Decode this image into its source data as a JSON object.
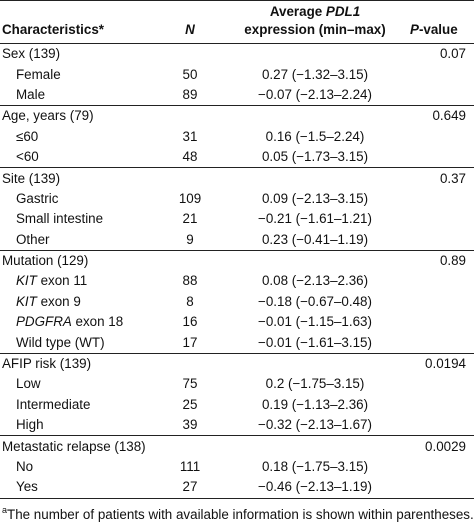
{
  "header": {
    "characteristics": "Characteristics*",
    "n": "N",
    "avg_line1_prefix": "Average ",
    "avg_line1_gene": "PDL1",
    "avg_line2": "expression (min–max)",
    "p_italic": "P",
    "p_rest": "-value"
  },
  "rows": [
    {
      "label": "Sex (139)",
      "n": "",
      "avg": "",
      "p": "0.07",
      "indent": false,
      "italic": false,
      "rest": ""
    },
    {
      "label": "Female",
      "n": "50",
      "avg": "0.27 (−1.32–3.15)",
      "p": "",
      "indent": true,
      "italic": false,
      "rest": ""
    },
    {
      "label": "Male",
      "n": "89",
      "avg": "−0.07 (−2.13–2.24)",
      "p": "",
      "indent": true,
      "italic": false,
      "rest": ""
    },
    {
      "label": "Age, years (79)",
      "n": "",
      "avg": "",
      "p": "0.649",
      "indent": false,
      "italic": false,
      "rest": ""
    },
    {
      "label": "≤60",
      "n": "31",
      "avg": "0.16 (−1.5–2.24)",
      "p": "",
      "indent": true,
      "italic": false,
      "rest": ""
    },
    {
      "label": "<60",
      "n": "48",
      "avg": "0.05 (−1.73–3.15)",
      "p": "",
      "indent": true,
      "italic": false,
      "rest": ""
    },
    {
      "label": "Site (139)",
      "n": "",
      "avg": "",
      "p": "0.37",
      "indent": false,
      "italic": false,
      "rest": ""
    },
    {
      "label": "Gastric",
      "n": "109",
      "avg": "0.09 (−2.13–3.15)",
      "p": "",
      "indent": true,
      "italic": false,
      "rest": ""
    },
    {
      "label": "Small intestine",
      "n": "21",
      "avg": "−0.21 (−1.61–1.21)",
      "p": "",
      "indent": true,
      "italic": false,
      "rest": ""
    },
    {
      "label": "Other",
      "n": "9",
      "avg": "0.23 (−0.41–1.19)",
      "p": "",
      "indent": true,
      "italic": false,
      "rest": ""
    },
    {
      "label": "Mutation (129)",
      "n": "",
      "avg": "",
      "p": "0.89",
      "indent": false,
      "italic": false,
      "rest": ""
    },
    {
      "label": "KIT",
      "n": "88",
      "avg": "0.08 (−2.13–2.36)",
      "p": "",
      "indent": true,
      "italic": true,
      "rest": " exon 11"
    },
    {
      "label": "KIT",
      "n": "8",
      "avg": "−0.18 (−0.67–0.48)",
      "p": "",
      "indent": true,
      "italic": true,
      "rest": " exon 9"
    },
    {
      "label": "PDGFRA",
      "n": "16",
      "avg": "−0.01 (−1.15–1.63)",
      "p": "",
      "indent": true,
      "italic": true,
      "rest": " exon 18"
    },
    {
      "label": "Wild type (WT)",
      "n": "17",
      "avg": "−0.01 (−1.61–3.15)",
      "p": "",
      "indent": true,
      "italic": false,
      "rest": ""
    },
    {
      "label": "AFIP risk (139)",
      "n": "",
      "avg": "",
      "p": "0.0194",
      "indent": false,
      "italic": false,
      "rest": ""
    },
    {
      "label": "Low",
      "n": "75",
      "avg": "0.2 (−1.75–3.15)",
      "p": "",
      "indent": true,
      "italic": false,
      "rest": ""
    },
    {
      "label": "Intermediate",
      "n": "25",
      "avg": "0.19 (−1.13–2.36)",
      "p": "",
      "indent": true,
      "italic": false,
      "rest": ""
    },
    {
      "label": "High",
      "n": "39",
      "avg": "−0.32 (−2.13–1.67)",
      "p": "",
      "indent": true,
      "italic": false,
      "rest": ""
    },
    {
      "label": "Metastatic relapse (138)",
      "n": "",
      "avg": "",
      "p": "0.0029",
      "indent": false,
      "italic": false,
      "rest": ""
    },
    {
      "label": "No",
      "n": "111",
      "avg": "0.18 (−1.75–3.15)",
      "p": "",
      "indent": true,
      "italic": false,
      "rest": ""
    },
    {
      "label": "Yes",
      "n": "27",
      "avg": "−0.46 (−2.13–1.19)",
      "p": "",
      "indent": true,
      "italic": false,
      "rest": ""
    }
  ],
  "footnote": {
    "marker": "a",
    "text": "The number of patients with available information is shown within parentheses."
  }
}
